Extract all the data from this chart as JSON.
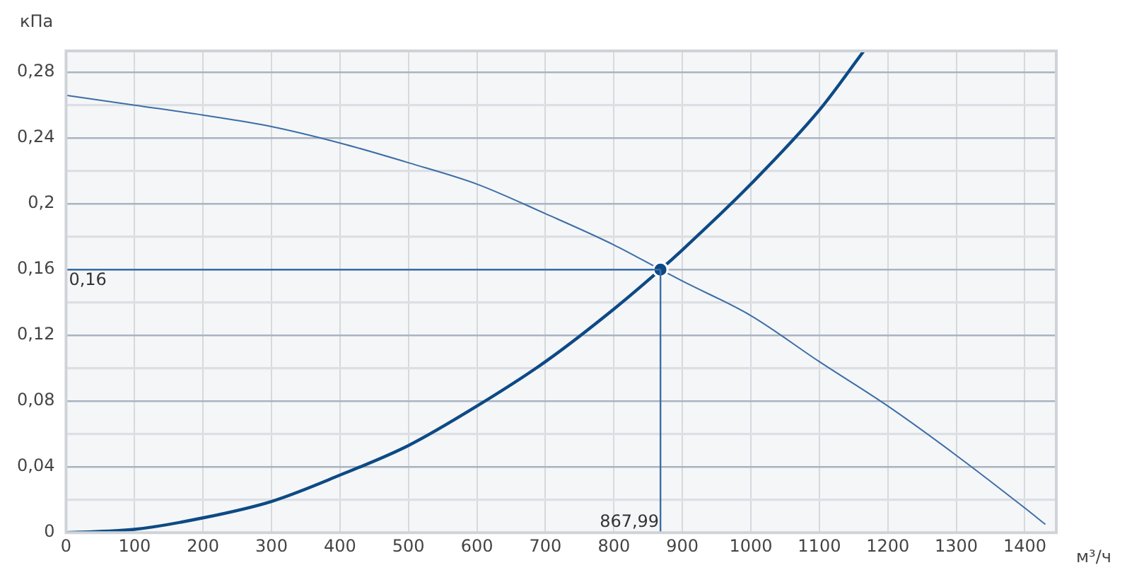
{
  "chart_data": {
    "type": "line",
    "xlabel": "м³/ч",
    "ylabel": "кПа",
    "xlim": [
      0,
      1446
    ],
    "ylim": [
      0,
      0.293
    ],
    "xticks": [
      0,
      100,
      200,
      300,
      400,
      500,
      600,
      700,
      800,
      900,
      1000,
      1100,
      1200,
      1300,
      1400
    ],
    "yticks": [
      {
        "value": 0,
        "label": "0"
      },
      {
        "value": 0.02,
        "label": null
      },
      {
        "value": 0.04,
        "label": "0,04"
      },
      {
        "value": 0.06,
        "label": null
      },
      {
        "value": 0.08,
        "label": "0,08"
      },
      {
        "value": 0.1,
        "label": null
      },
      {
        "value": 0.12,
        "label": "0,12"
      },
      {
        "value": 0.14,
        "label": null
      },
      {
        "value": 0.16,
        "label": "0,16"
      },
      {
        "value": 0.18,
        "label": null
      },
      {
        "value": 0.2,
        "label": "0,2"
      },
      {
        "value": 0.22,
        "label": null
      },
      {
        "value": 0.24,
        "label": "0,24"
      },
      {
        "value": 0.26,
        "label": null
      },
      {
        "value": 0.28,
        "label": "0,28"
      }
    ],
    "grid": true,
    "legend": false,
    "marker": "none",
    "line_style": "solid",
    "series": [
      {
        "color": "#3d6ea6",
        "x": [
          0,
          100,
          200,
          300,
          400,
          500,
          600,
          700,
          800,
          867.99,
          900,
          1000,
          1100,
          1200,
          1300,
          1400,
          1430
        ],
        "values": [
          0.266,
          0.26,
          0.254,
          0.247,
          0.237,
          0.225,
          0.212,
          0.194,
          0.175,
          0.16,
          0.153,
          0.132,
          0.104,
          0.077,
          0.047,
          0.015,
          0.005
        ]
      },
      {
        "color": "#0d4a85",
        "x": [
          0,
          100,
          200,
          300,
          400,
          500,
          600,
          700,
          800,
          867.99,
          900,
          1000,
          1100,
          1165
        ],
        "values": [
          0,
          0.002,
          0.009,
          0.019,
          0.035,
          0.053,
          0.077,
          0.104,
          0.136,
          0.16,
          0.172,
          0.212,
          0.257,
          0.293
        ]
      },
      {
        "type": "scatter",
        "marker": "circle",
        "color": "#0d4a85",
        "x": [
          867.99
        ],
        "values": [
          0.16
        ]
      }
    ],
    "ref_lines": [
      {
        "axis": "x",
        "value": 867.99,
        "label": "867,99",
        "color": "#3d6ea6"
      },
      {
        "axis": "y",
        "value": 0.16,
        "label": "0,16",
        "color": "#3d6ea6"
      }
    ]
  }
}
